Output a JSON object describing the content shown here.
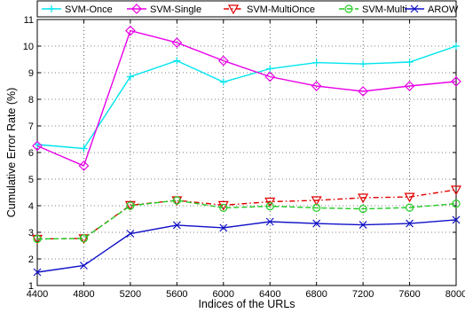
{
  "chart_data": {
    "type": "line",
    "title": "",
    "xlabel": "Indices of the URLs",
    "ylabel": "Cumulative Error Rate (%)",
    "x": [
      4400,
      4800,
      5200,
      5600,
      6000,
      6400,
      6800,
      7200,
      7600,
      8000
    ],
    "xlim": [
      4400,
      8000
    ],
    "ylim": [
      1,
      11
    ],
    "xticks": [
      "4400",
      "4800",
      "5200",
      "5600",
      "6000",
      "6400",
      "6800",
      "7200",
      "7600",
      "8000"
    ],
    "yticks": [
      "1",
      "2",
      "3",
      "4",
      "5",
      "6",
      "7",
      "8",
      "9",
      "10",
      "11"
    ],
    "grid": true,
    "legend_position": "top",
    "series": [
      {
        "name": "SVM-Once",
        "color": "#00e5ee",
        "marker": "plus",
        "dash": "solid",
        "values": [
          6.3,
          6.15,
          8.85,
          9.45,
          8.65,
          9.15,
          9.38,
          9.33,
          9.4,
          10.0
        ]
      },
      {
        "name": "SVM-Single",
        "color": "#e800e8",
        "marker": "diamond",
        "dash": "solid",
        "values": [
          6.25,
          5.5,
          10.58,
          10.13,
          9.45,
          8.85,
          8.5,
          8.3,
          8.5,
          8.67
        ]
      },
      {
        "name": "SVM-MultiOnce",
        "color": "#e00000",
        "marker": "triangle-down",
        "dash": "dashdot",
        "values": [
          2.75,
          2.77,
          4.02,
          4.2,
          4.02,
          4.15,
          4.2,
          4.3,
          4.33,
          4.6
        ]
      },
      {
        "name": "SVM-Multi",
        "color": "#22cc22",
        "marker": "circle",
        "dash": "dashed",
        "values": [
          2.75,
          2.77,
          4.0,
          4.2,
          3.92,
          3.98,
          3.92,
          3.88,
          3.93,
          4.08
        ]
      },
      {
        "name": "AROW",
        "color": "#1010c8",
        "marker": "x",
        "dash": "solid",
        "values": [
          1.5,
          1.75,
          2.95,
          3.27,
          3.17,
          3.4,
          3.33,
          3.28,
          3.33,
          3.47
        ]
      }
    ]
  }
}
